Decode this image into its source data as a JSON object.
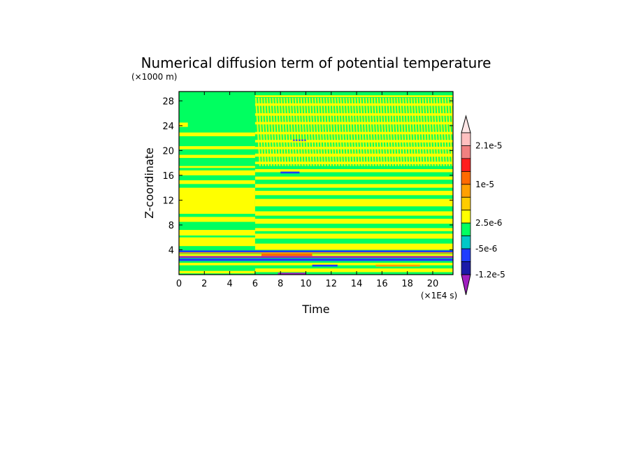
{
  "chart_data": {
    "type": "heatmap",
    "title": "Numerical diffusion term of potential temperature",
    "xlabel": "Time",
    "ylabel": "Z-coordinate",
    "x_unit_label": "(×1E4 s)",
    "y_unit_label": "(×1000 m)",
    "xlim": [
      0,
      21.6
    ],
    "ylim": [
      0,
      29.5
    ],
    "x_ticks": [
      0,
      2,
      4,
      6,
      8,
      10,
      12,
      14,
      16,
      18,
      20
    ],
    "y_ticks": [
      4,
      8,
      12,
      16,
      20,
      24,
      28
    ],
    "colorbar": {
      "levels": [
        -1.2e-05,
        -5e-06,
        2.5e-06,
        1e-05,
        2.1e-05
      ],
      "level_labels": [
        "-1.2e-5",
        "-5e-6",
        "2.5e-6",
        "1e-5",
        "2.1e-5"
      ],
      "colors": [
        "#a020c0",
        "#1a1aa8",
        "#1e3cff",
        "#00c8c8",
        "#00ff60",
        "#ffff00",
        "#ffcc00",
        "#ffa000",
        "#ff6a00",
        "#ff1e1e",
        "#f08080",
        "#ffc0c0",
        "#ffe6e6"
      ],
      "extend": "both"
    },
    "background_color": "#00ff60",
    "bands": [
      {
        "t0": 0,
        "t1": 6,
        "z0": 0.2,
        "z1": 0.6,
        "value": 2.5e-06
      },
      {
        "t0": 0,
        "t1": 21.6,
        "z0": 1.5,
        "z1": 1.9,
        "value": 2.5e-06
      },
      {
        "t0": 0,
        "t1": 21.6,
        "z0": 2.2,
        "z1": 2.6,
        "value": -6e-06
      },
      {
        "t0": 0,
        "t1": 21.6,
        "z0": 2.7,
        "z1": 3.0,
        "value": -1.3e-05
      },
      {
        "t0": 0,
        "t1": 21.6,
        "z0": 3.0,
        "z1": 3.3,
        "value": 2.5e-06
      },
      {
        "t0": 0,
        "t1": 21.6,
        "z0": 3.4,
        "z1": 3.6,
        "value": 8e-06
      },
      {
        "t0": 0,
        "t1": 21.6,
        "z0": 3.6,
        "z1": 3.9,
        "value": -6e-06
      },
      {
        "t0": 0,
        "t1": 6,
        "z0": 4.6,
        "z1": 6.0,
        "value": 2.5e-06
      },
      {
        "t0": 0,
        "t1": 6,
        "z0": 6.3,
        "z1": 7.2,
        "value": 2.5e-06
      },
      {
        "t0": 0,
        "t1": 6,
        "z0": 8.5,
        "z1": 9.3,
        "value": 2.5e-06
      },
      {
        "t0": 0,
        "t1": 6,
        "z0": 9.8,
        "z1": 14.0,
        "value": 2.5e-06
      },
      {
        "t0": 0,
        "t1": 6,
        "z0": 14.6,
        "z1": 15.2,
        "value": 2.5e-06
      },
      {
        "t0": 0,
        "t1": 6,
        "z0": 16.0,
        "z1": 16.8,
        "value": 2.5e-06
      },
      {
        "t0": 0,
        "t1": 6,
        "z0": 17.2,
        "z1": 17.5,
        "value": 2.5e-06
      },
      {
        "t0": 0,
        "t1": 6,
        "z0": 18.8,
        "z1": 19.3,
        "value": 2.5e-06
      },
      {
        "t0": 0,
        "t1": 6,
        "z0": 20.2,
        "z1": 20.7,
        "value": 2.5e-06
      },
      {
        "t0": 0,
        "t1": 6,
        "z0": 22.3,
        "z1": 22.9,
        "value": 2.5e-06
      },
      {
        "t0": 0,
        "t1": 0.7,
        "z0": 23.8,
        "z1": 24.5,
        "value": 2.5e-06
      },
      {
        "t0": 6,
        "t1": 21.6,
        "z0": 0.4,
        "z1": 1.0,
        "value": 2.5e-06
      },
      {
        "t0": 6,
        "t1": 21.6,
        "z0": 4.0,
        "z1": 5.0,
        "value": 2.5e-06
      },
      {
        "t0": 6,
        "t1": 21.6,
        "z0": 5.8,
        "z1": 6.6,
        "value": 2.5e-06
      },
      {
        "t0": 6,
        "t1": 21.6,
        "z0": 7.0,
        "z1": 7.5,
        "value": 2.5e-06
      },
      {
        "t0": 6,
        "t1": 21.6,
        "z0": 8.2,
        "z1": 9.0,
        "value": 2.5e-06
      },
      {
        "t0": 6,
        "t1": 21.6,
        "z0": 9.5,
        "z1": 10.2,
        "value": 2.5e-06
      },
      {
        "t0": 6,
        "t1": 21.6,
        "z0": 11.0,
        "z1": 12.2,
        "value": 2.5e-06
      },
      {
        "t0": 6,
        "t1": 21.6,
        "z0": 12.8,
        "z1": 13.5,
        "value": 2.5e-06
      },
      {
        "t0": 6,
        "t1": 21.6,
        "z0": 14.0,
        "z1": 14.6,
        "value": 2.5e-06
      },
      {
        "t0": 6,
        "t1": 21.6,
        "z0": 15.3,
        "z1": 15.8,
        "value": 2.5e-06
      },
      {
        "t0": 6,
        "t1": 21.6,
        "z0": 16.5,
        "z1": 17.0,
        "value": 2.5e-06
      },
      {
        "t0": 6,
        "t1": 21.6,
        "z0": 17.8,
        "z1": 18.2,
        "value": 2.5e-06
      },
      {
        "t0": 6,
        "t1": 21.6,
        "z0": 19.0,
        "z1": 19.5,
        "value": 2.5e-06
      },
      {
        "t0": 6,
        "t1": 21.6,
        "z0": 20.2,
        "z1": 20.6,
        "value": 2.5e-06
      },
      {
        "t0": 6,
        "t1": 21.6,
        "z0": 21.3,
        "z1": 21.7,
        "value": 2.5e-06
      },
      {
        "t0": 6,
        "t1": 21.6,
        "z0": 22.6,
        "z1": 23.0,
        "value": 2.5e-06
      },
      {
        "t0": 6,
        "t1": 21.6,
        "z0": 24.2,
        "z1": 24.6,
        "value": 2.5e-06
      },
      {
        "t0": 6,
        "t1": 21.6,
        "z0": 25.6,
        "z1": 26.0,
        "value": 2.5e-06
      },
      {
        "t0": 6,
        "t1": 21.6,
        "z0": 27.2,
        "z1": 27.6,
        "value": 2.5e-06
      },
      {
        "t0": 6,
        "t1": 21.6,
        "z0": 28.6,
        "z1": 28.9,
        "value": 2.5e-06
      },
      {
        "t0": 9,
        "t1": 10,
        "z0": 21.5,
        "z1": 21.8,
        "value": -6e-06
      },
      {
        "t0": 8,
        "t1": 9.5,
        "z0": 16.3,
        "z1": 16.6,
        "value": -6e-06
      },
      {
        "t0": 6.5,
        "t1": 10.5,
        "z0": 3.0,
        "z1": 3.4,
        "value": 1.2e-05
      },
      {
        "t0": 15.5,
        "t1": 19,
        "z0": 1.3,
        "z1": 1.6,
        "value": 9e-06
      },
      {
        "t0": 7.8,
        "t1": 10,
        "z0": 0.0,
        "z1": 0.3,
        "value": -1.3e-05
      },
      {
        "t0": 10.5,
        "t1": 12.5,
        "z0": 1.3,
        "z1": 1.6,
        "value": -6e-06
      }
    ],
    "streaks": {
      "t0": 6,
      "t1": 21.6,
      "z0": 17.5,
      "z1": 28.5,
      "count": 70,
      "value": 2.5e-06
    }
  }
}
